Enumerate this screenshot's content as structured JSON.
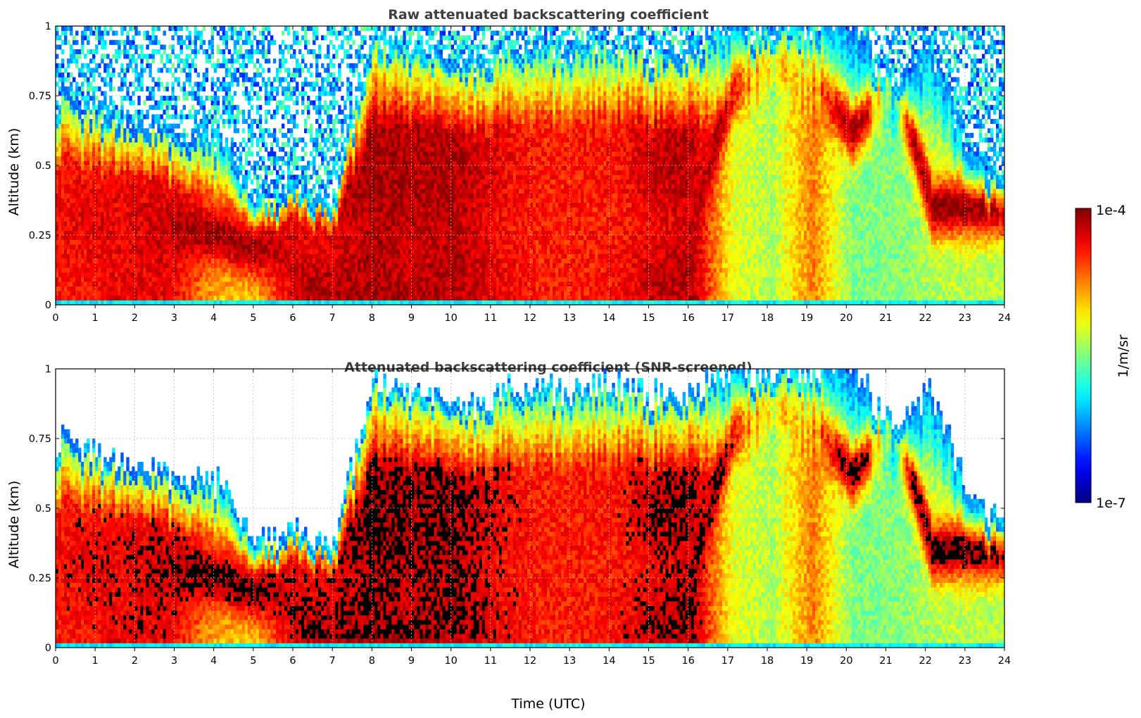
{
  "chart_data": [
    {
      "type": "heatmap",
      "title": "Raw attenuated backscattering coefficient",
      "xlabel": "",
      "ylabel": "Altitude (km)",
      "xlim": [
        0,
        24
      ],
      "ylim": [
        0,
        1
      ],
      "x_ticks": [
        "0",
        "1",
        "2",
        "3",
        "4",
        "5",
        "6",
        "7",
        "8",
        "9",
        "10",
        "11",
        "12",
        "13",
        "14",
        "15",
        "16",
        "17",
        "18",
        "19",
        "20",
        "21",
        "22",
        "23",
        "24"
      ],
      "y_ticks": [
        "0",
        "0.25",
        "0.5",
        "0.75",
        "1"
      ],
      "grid": true,
      "screened": false
    },
    {
      "type": "heatmap",
      "title": "Attenuated backscattering coefficient (SNR-screened)",
      "xlabel": "Time (UTC)",
      "ylabel": "Altitude (km)",
      "xlim": [
        0,
        24
      ],
      "ylim": [
        0,
        1
      ],
      "x_ticks": [
        "0",
        "1",
        "2",
        "3",
        "4",
        "5",
        "6",
        "7",
        "8",
        "9",
        "10",
        "11",
        "12",
        "13",
        "14",
        "15",
        "16",
        "17",
        "18",
        "19",
        "20",
        "21",
        "22",
        "23",
        "24"
      ],
      "y_ticks": [
        "0",
        "0.25",
        "0.5",
        "0.75",
        "1"
      ],
      "grid": true,
      "screened": true
    }
  ],
  "colorbar": {
    "label": "1/m/sr",
    "max_label": "1e-4",
    "min_label": "1e-7",
    "colormap": "jet",
    "scale": "log"
  },
  "profile": {
    "description_free": true,
    "top_km": [
      0.75,
      0.7,
      0.65,
      0.62,
      0.6,
      0.42,
      0.4,
      0.4,
      0.95,
      0.9,
      0.85,
      0.9,
      0.95,
      0.9,
      0.95,
      0.9,
      0.92,
      1,
      1,
      1,
      1,
      0.78,
      0.92,
      0.5,
      0.48
    ],
    "layer_km": [
      0.3,
      0.3,
      0.28,
      0.27,
      0.26,
      0.2,
      0.22,
      0.25,
      0.22,
      0.2,
      0.25,
      0.28,
      0.3,
      0.3,
      0.3,
      0.28,
      0.3,
      0.8,
      0.9,
      0.85,
      0.62,
      0.85,
      0.35,
      0.35,
      0.35
    ],
    "layer_intensity": [
      0.88,
      0.9,
      0.9,
      0.95,
      0.97,
      0.97,
      0.9,
      0.9,
      0.95,
      0.92,
      0.95,
      0.88,
      0.85,
      0.85,
      0.85,
      0.88,
      0.92,
      0.97,
      0.96,
      0.9,
      0.95,
      0.95,
      0.97,
      0.97,
      0.95
    ],
    "base_intensity": [
      0.85,
      0.88,
      0.9,
      0.88,
      0.7,
      0.65,
      0.94,
      0.95,
      0.96,
      0.95,
      0.95,
      0.9,
      0.85,
      0.85,
      0.86,
      0.93,
      0.95,
      0.6,
      0.55,
      0.75,
      0.5,
      0.5,
      0.55,
      0.55,
      0.55
    ]
  }
}
